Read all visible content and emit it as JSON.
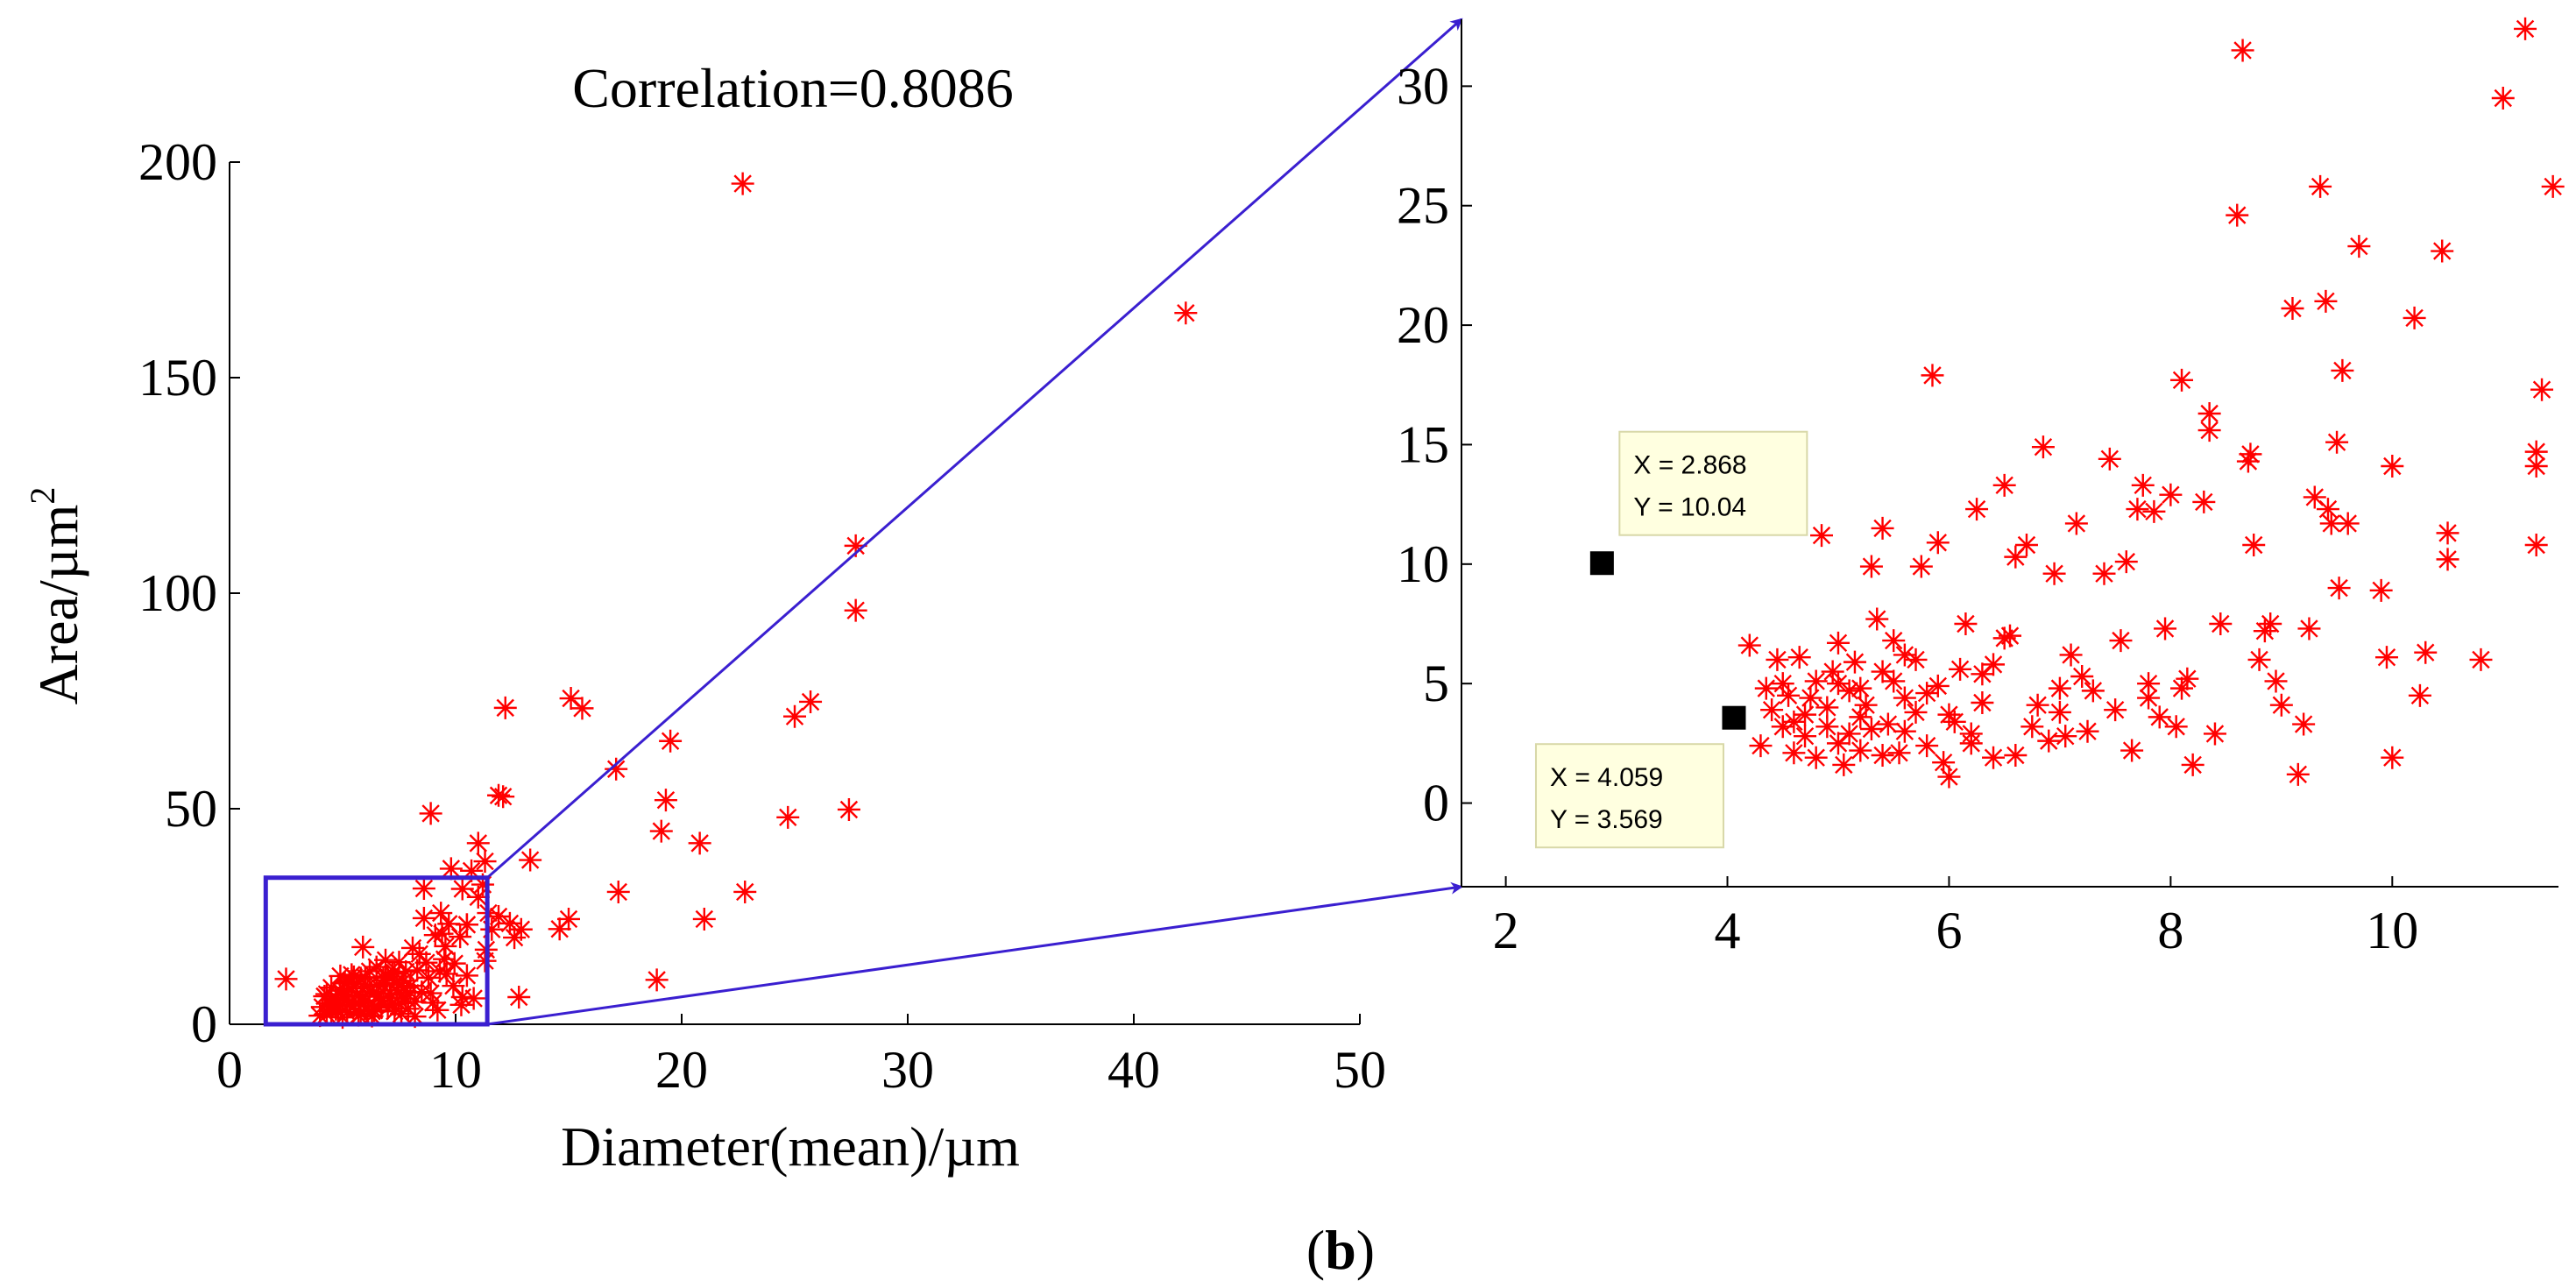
{
  "figure_label_letter": "b",
  "colors": {
    "marker": "#ff0000",
    "zoom": "#3a1fd0",
    "datatip_bg": "#ffffe0",
    "datatip_border": "#d8d8a8"
  },
  "chart_data": [
    {
      "id": "main",
      "type": "scatter",
      "title": "Correlation=0.8086",
      "xlabel": "Diameter(mean)/µm",
      "ylabel": "Area/µm",
      "ylabel_superscript": "2",
      "xlim": [
        0,
        50
      ],
      "ylim": [
        0,
        200
      ],
      "xticks": [
        0,
        10,
        20,
        30,
        40,
        50
      ],
      "yticks": [
        0,
        50,
        100,
        150,
        200
      ],
      "marker": "asterisk",
      "zoom_region": {
        "x": [
          1.6,
          11.4
        ],
        "y": [
          0,
          34
        ]
      },
      "points": [
        [
          2.5,
          10.5
        ],
        [
          8.9,
          48.9
        ],
        [
          9.8,
          36.1
        ],
        [
          10.3,
          31.4
        ],
        [
          10.5,
          23.1
        ],
        [
          10.7,
          35.6
        ],
        [
          11.0,
          42.0
        ],
        [
          11.3,
          37.8
        ],
        [
          11.6,
          22.0
        ],
        [
          11.9,
          53.1
        ],
        [
          11.9,
          25.0
        ],
        [
          12.1,
          52.8
        ],
        [
          12.2,
          73.4
        ],
        [
          12.4,
          23.4
        ],
        [
          12.6,
          20.1
        ],
        [
          12.8,
          6.3
        ],
        [
          12.9,
          22.0
        ],
        [
          13.3,
          38.1
        ],
        [
          14.6,
          22.1
        ],
        [
          15.0,
          24.4
        ],
        [
          15.1,
          75.6
        ],
        [
          15.6,
          73.3
        ],
        [
          17.1,
          59.2
        ],
        [
          17.2,
          30.7
        ],
        [
          18.9,
          10.3
        ],
        [
          19.1,
          44.8
        ],
        [
          19.3,
          52.0
        ],
        [
          19.5,
          65.7
        ],
        [
          20.8,
          42.0
        ],
        [
          21.0,
          24.4
        ],
        [
          22.7,
          195.0
        ],
        [
          22.8,
          30.7
        ],
        [
          24.7,
          48.0
        ],
        [
          25.0,
          71.4
        ],
        [
          25.7,
          74.8
        ],
        [
          27.4,
          49.8
        ],
        [
          27.7,
          111.0
        ],
        [
          27.7,
          96.0
        ],
        [
          42.3,
          165.0
        ],
        [
          4.2,
          6.5
        ],
        [
          4.3,
          2.3
        ],
        [
          4.4,
          4.9
        ],
        [
          4.5,
          4.0
        ],
        [
          4.7,
          6.0
        ],
        [
          4.8,
          3.3
        ],
        [
          4.9,
          11.2
        ],
        [
          5.1,
          5.5
        ],
        [
          5.2,
          2.8
        ],
        [
          5.3,
          9.9
        ],
        [
          5.4,
          11.5
        ],
        [
          5.5,
          4.3
        ],
        [
          5.6,
          6.8
        ],
        [
          5.7,
          2.1
        ],
        [
          5.9,
          17.9
        ],
        [
          6.0,
          10.9
        ],
        [
          6.1,
          3.4
        ],
        [
          6.2,
          7.5
        ],
        [
          6.4,
          4.2
        ],
        [
          6.5,
          13.3
        ],
        [
          6.6,
          7.0
        ],
        [
          6.8,
          10.8
        ],
        [
          6.9,
          14.9
        ],
        [
          7.0,
          3.8
        ],
        [
          7.1,
          6.2
        ],
        [
          7.2,
          11.7
        ],
        [
          7.3,
          3.0
        ],
        [
          7.4,
          9.6
        ],
        [
          7.5,
          14.4
        ],
        [
          7.6,
          6.8
        ],
        [
          7.7,
          10.1
        ],
        [
          7.8,
          12.2
        ],
        [
          7.9,
          3.6
        ],
        [
          8.0,
          7.3
        ],
        [
          8.1,
          17.7
        ],
        [
          8.2,
          5.2
        ],
        [
          8.3,
          12.5
        ],
        [
          8.4,
          16.3
        ],
        [
          8.5,
          7.5
        ],
        [
          8.6,
          24.6
        ],
        [
          8.6,
          31.5
        ],
        [
          8.7,
          14.3
        ],
        [
          8.8,
          10.8
        ],
        [
          8.9,
          7.2
        ],
        [
          9.0,
          5.0
        ],
        [
          9.1,
          20.7
        ],
        [
          9.2,
          3.3
        ],
        [
          9.3,
          12.3
        ],
        [
          9.35,
          25.8
        ],
        [
          9.4,
          21.0
        ],
        [
          9.5,
          15.1
        ],
        [
          9.55,
          18.1
        ],
        [
          9.6,
          11.7
        ],
        [
          9.7,
          23.3
        ],
        [
          9.9,
          8.9
        ],
        [
          9.95,
          14.1
        ],
        [
          10.2,
          20.3
        ],
        [
          10.25,
          4.5
        ],
        [
          10.3,
          6.3
        ],
        [
          10.5,
          23.1
        ],
        [
          10.5,
          11.3
        ],
        [
          10.8,
          6.0
        ],
        [
          11.0,
          29.5
        ],
        [
          11.2,
          32.4
        ],
        [
          11.3,
          14.7
        ],
        [
          11.35,
          17.3
        ],
        [
          11.45,
          25.8
        ],
        [
          5.0,
          1.6
        ],
        [
          5.8,
          2.4
        ],
        [
          6.3,
          1.9
        ],
        [
          4.5,
          3.0
        ],
        [
          4.6,
          4.5
        ],
        [
          4.8,
          5.7
        ],
        [
          5.0,
          6.6
        ],
        [
          5.2,
          7.4
        ],
        [
          5.4,
          8.3
        ],
        [
          5.6,
          9.4
        ],
        [
          5.8,
          10.7
        ],
        [
          6.0,
          5.3
        ],
        [
          6.2,
          12.3
        ],
        [
          6.4,
          3.2
        ],
        [
          6.6,
          6.4
        ],
        [
          6.8,
          9.1
        ],
        [
          7.0,
          11.1
        ],
        [
          7.2,
          4.7
        ],
        [
          7.4,
          7.9
        ],
        [
          7.6,
          2.4
        ],
        [
          7.8,
          6.0
        ],
        [
          8.0,
          8.9
        ],
        [
          8.2,
          1.8
        ],
        [
          4.0,
          2.0
        ],
        [
          4.1,
          4.0
        ],
        [
          4.3,
          7.0
        ],
        [
          4.5,
          8.5
        ],
        [
          4.7,
          3.5
        ],
        [
          4.9,
          7.8
        ],
        [
          5.1,
          9.5
        ],
        [
          5.3,
          4.5
        ],
        [
          5.5,
          11.0
        ],
        [
          5.7,
          5.0
        ],
        [
          5.9,
          6.5
        ],
        [
          6.1,
          8.8
        ],
        [
          6.3,
          3.0
        ],
        [
          6.5,
          9.2
        ],
        [
          6.7,
          5.5
        ],
        [
          6.9,
          10.2
        ],
        [
          7.1,
          7.2
        ],
        [
          7.3,
          12.0
        ],
        [
          7.5,
          4.9
        ],
        [
          7.7,
          8.5
        ]
      ]
    },
    {
      "id": "zoom",
      "type": "scatter",
      "xlim": [
        1.6,
        11.5
      ],
      "ylim": [
        -3.5,
        32.8
      ],
      "xticks": [
        2,
        4,
        6,
        8,
        10
      ],
      "yticks": [
        0,
        5,
        10,
        15,
        20,
        25,
        30
      ],
      "marker": "asterisk",
      "points": [
        [
          4.2,
          6.6
        ],
        [
          4.3,
          2.4
        ],
        [
          4.35,
          4.8
        ],
        [
          4.4,
          3.9
        ],
        [
          4.45,
          6.0
        ],
        [
          4.5,
          3.2
        ],
        [
          4.55,
          4.5
        ],
        [
          4.6,
          2.1
        ],
        [
          4.65,
          6.1
        ],
        [
          4.7,
          3.7
        ],
        [
          4.75,
          4.4
        ],
        [
          4.8,
          1.9
        ],
        [
          4.85,
          11.2
        ],
        [
          4.9,
          3.2
        ],
        [
          4.95,
          5.5
        ],
        [
          5.0,
          6.7
        ],
        [
          5.05,
          1.6
        ],
        [
          5.1,
          2.9
        ],
        [
          5.15,
          5.9
        ],
        [
          5.2,
          2.2
        ],
        [
          5.25,
          4.1
        ],
        [
          5.3,
          9.9
        ],
        [
          5.35,
          7.7
        ],
        [
          5.4,
          11.5
        ],
        [
          5.45,
          3.3
        ],
        [
          5.5,
          6.8
        ],
        [
          5.55,
          2.1
        ],
        [
          5.6,
          4.4
        ],
        [
          5.7,
          6.0
        ],
        [
          5.75,
          9.9
        ],
        [
          5.8,
          2.4
        ],
        [
          5.85,
          17.9
        ],
        [
          5.9,
          10.9
        ],
        [
          5.95,
          1.7
        ],
        [
          6.05,
          3.4
        ],
        [
          6.1,
          5.6
        ],
        [
          6.15,
          7.5
        ],
        [
          6.2,
          2.9
        ],
        [
          6.25,
          12.3
        ],
        [
          6.3,
          4.2
        ],
        [
          6.4,
          1.9
        ],
        [
          6.5,
          13.3
        ],
        [
          6.55,
          7.0
        ],
        [
          6.6,
          10.3
        ],
        [
          6.7,
          10.8
        ],
        [
          6.75,
          3.2
        ],
        [
          6.85,
          14.9
        ],
        [
          6.95,
          9.6
        ],
        [
          7.0,
          3.8
        ],
        [
          7.05,
          2.8
        ],
        [
          7.1,
          6.2
        ],
        [
          7.15,
          11.7
        ],
        [
          7.25,
          3.0
        ],
        [
          7.3,
          4.7
        ],
        [
          7.4,
          9.6
        ],
        [
          7.45,
          14.4
        ],
        [
          7.55,
          6.8
        ],
        [
          7.6,
          10.1
        ],
        [
          7.65,
          2.2
        ],
        [
          7.7,
          12.3
        ],
        [
          7.75,
          13.3
        ],
        [
          7.8,
          5.0
        ],
        [
          7.85,
          12.2
        ],
        [
          7.9,
          3.6
        ],
        [
          7.95,
          7.3
        ],
        [
          8.0,
          12.9
        ],
        [
          8.05,
          3.2
        ],
        [
          8.1,
          17.7
        ],
        [
          8.15,
          5.2
        ],
        [
          8.2,
          1.6
        ],
        [
          8.3,
          12.6
        ],
        [
          8.35,
          16.3
        ],
        [
          8.35,
          15.6
        ],
        [
          8.45,
          7.5
        ],
        [
          8.6,
          24.6
        ],
        [
          8.65,
          31.5
        ],
        [
          8.7,
          14.3
        ],
        [
          8.72,
          14.6
        ],
        [
          8.75,
          10.8
        ],
        [
          8.85,
          7.2
        ],
        [
          8.9,
          7.5
        ],
        [
          8.95,
          5.1
        ],
        [
          9.0,
          4.1
        ],
        [
          9.1,
          20.7
        ],
        [
          9.15,
          1.2
        ],
        [
          9.2,
          3.3
        ],
        [
          9.25,
          7.3
        ],
        [
          9.3,
          12.8
        ],
        [
          9.35,
          25.8
        ],
        [
          9.4,
          21.0
        ],
        [
          9.42,
          12.3
        ],
        [
          9.45,
          11.7
        ],
        [
          9.5,
          15.1
        ],
        [
          9.52,
          9.0
        ],
        [
          9.55,
          18.1
        ],
        [
          9.6,
          11.7
        ],
        [
          9.7,
          23.3
        ],
        [
          9.9,
          8.9
        ],
        [
          9.95,
          6.1
        ],
        [
          10.0,
          14.1
        ],
        [
          10.0,
          1.9
        ],
        [
          10.2,
          20.3
        ],
        [
          10.25,
          4.5
        ],
        [
          10.3,
          6.3
        ],
        [
          10.45,
          23.1
        ],
        [
          10.5,
          11.3
        ],
        [
          10.5,
          10.2
        ],
        [
          10.8,
          6.0
        ],
        [
          11.0,
          29.5
        ],
        [
          11.2,
          32.4
        ],
        [
          11.3,
          14.7
        ],
        [
          11.35,
          17.3
        ],
        [
          11.45,
          25.8
        ],
        [
          11.3,
          10.8
        ],
        [
          11.3,
          14.1
        ],
        [
          5.0,
          5.0
        ],
        [
          5.2,
          4.8
        ],
        [
          5.4,
          5.5
        ],
        [
          5.6,
          6.2
        ],
        [
          4.9,
          4.0
        ],
        [
          5.1,
          4.7
        ],
        [
          5.3,
          3.1
        ],
        [
          5.5,
          5.1
        ],
        [
          5.7,
          3.8
        ],
        [
          5.9,
          4.9
        ],
        [
          6.0,
          3.7
        ],
        [
          6.3,
          5.4
        ],
        [
          6.5,
          6.9
        ],
        [
          6.8,
          4.1
        ],
        [
          7.0,
          4.8
        ],
        [
          4.5,
          5.0
        ],
        [
          4.6,
          3.4
        ],
        [
          4.7,
          2.8
        ],
        [
          4.8,
          5.1
        ],
        [
          5.0,
          2.5
        ],
        [
          5.2,
          3.6
        ],
        [
          5.4,
          2.0
        ],
        [
          5.6,
          3.0
        ],
        [
          5.8,
          4.6
        ],
        [
          6.0,
          1.1
        ],
        [
          6.2,
          2.5
        ],
        [
          6.4,
          5.8
        ],
        [
          6.6,
          2.0
        ],
        [
          6.9,
          2.6
        ],
        [
          7.2,
          5.3
        ],
        [
          7.5,
          3.9
        ],
        [
          7.8,
          4.4
        ],
        [
          8.1,
          4.8
        ],
        [
          8.4,
          2.9
        ],
        [
          8.8,
          6.0
        ]
      ],
      "datatips": [
        {
          "point": [
            2.868,
            10.04
          ],
          "label_x": "X = 2.868",
          "label_y": "Y = 10.04"
        },
        {
          "point": [
            4.059,
            3.569
          ],
          "label_x": "X = 4.059",
          "label_y": "Y = 3.569"
        }
      ]
    }
  ]
}
